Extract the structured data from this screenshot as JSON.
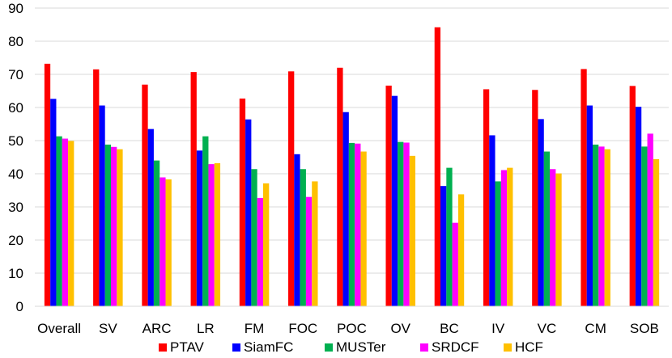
{
  "chart_data": {
    "type": "bar",
    "title": "",
    "xlabel": "",
    "ylabel": "",
    "ylim": [
      0,
      90
    ],
    "yticks": [
      0,
      10,
      20,
      30,
      40,
      50,
      60,
      70,
      80,
      90
    ],
    "grid": true,
    "legend_position": "bottom",
    "categories": [
      "Overall",
      "SV",
      "ARC",
      "LR",
      "FM",
      "FOC",
      "POC",
      "OV",
      "BC",
      "IV",
      "VC",
      "CM",
      "SOB"
    ],
    "series": [
      {
        "name": "PTAV",
        "color": "#ff0000",
        "values": [
          73.2,
          71.5,
          66.9,
          70.7,
          62.7,
          70.9,
          72.0,
          66.6,
          84.2,
          65.5,
          65.3,
          71.6,
          66.5
        ]
      },
      {
        "name": "SiamFC",
        "color": "#0000ff",
        "values": [
          62.6,
          60.6,
          53.5,
          47.0,
          56.4,
          45.9,
          58.6,
          63.5,
          36.3,
          51.6,
          56.5,
          60.6,
          60.2
        ]
      },
      {
        "name": "MUSTer",
        "color": "#00b050",
        "values": [
          51.3,
          48.8,
          44.0,
          51.3,
          41.4,
          41.4,
          49.3,
          49.6,
          41.8,
          37.7,
          46.7,
          48.8,
          48.2
        ]
      },
      {
        "name": "SRDCF",
        "color": "#ff00ff",
        "values": [
          50.6,
          48.1,
          38.9,
          42.9,
          32.7,
          33.0,
          49.1,
          49.4,
          25.2,
          41.1,
          41.4,
          48.2,
          52.1
        ]
      },
      {
        "name": "HCF",
        "color": "#ffc000",
        "values": [
          49.9,
          47.4,
          38.3,
          43.2,
          37.1,
          37.7,
          46.7,
          45.4,
          33.8,
          41.8,
          40.1,
          47.4,
          44.4
        ]
      }
    ]
  }
}
